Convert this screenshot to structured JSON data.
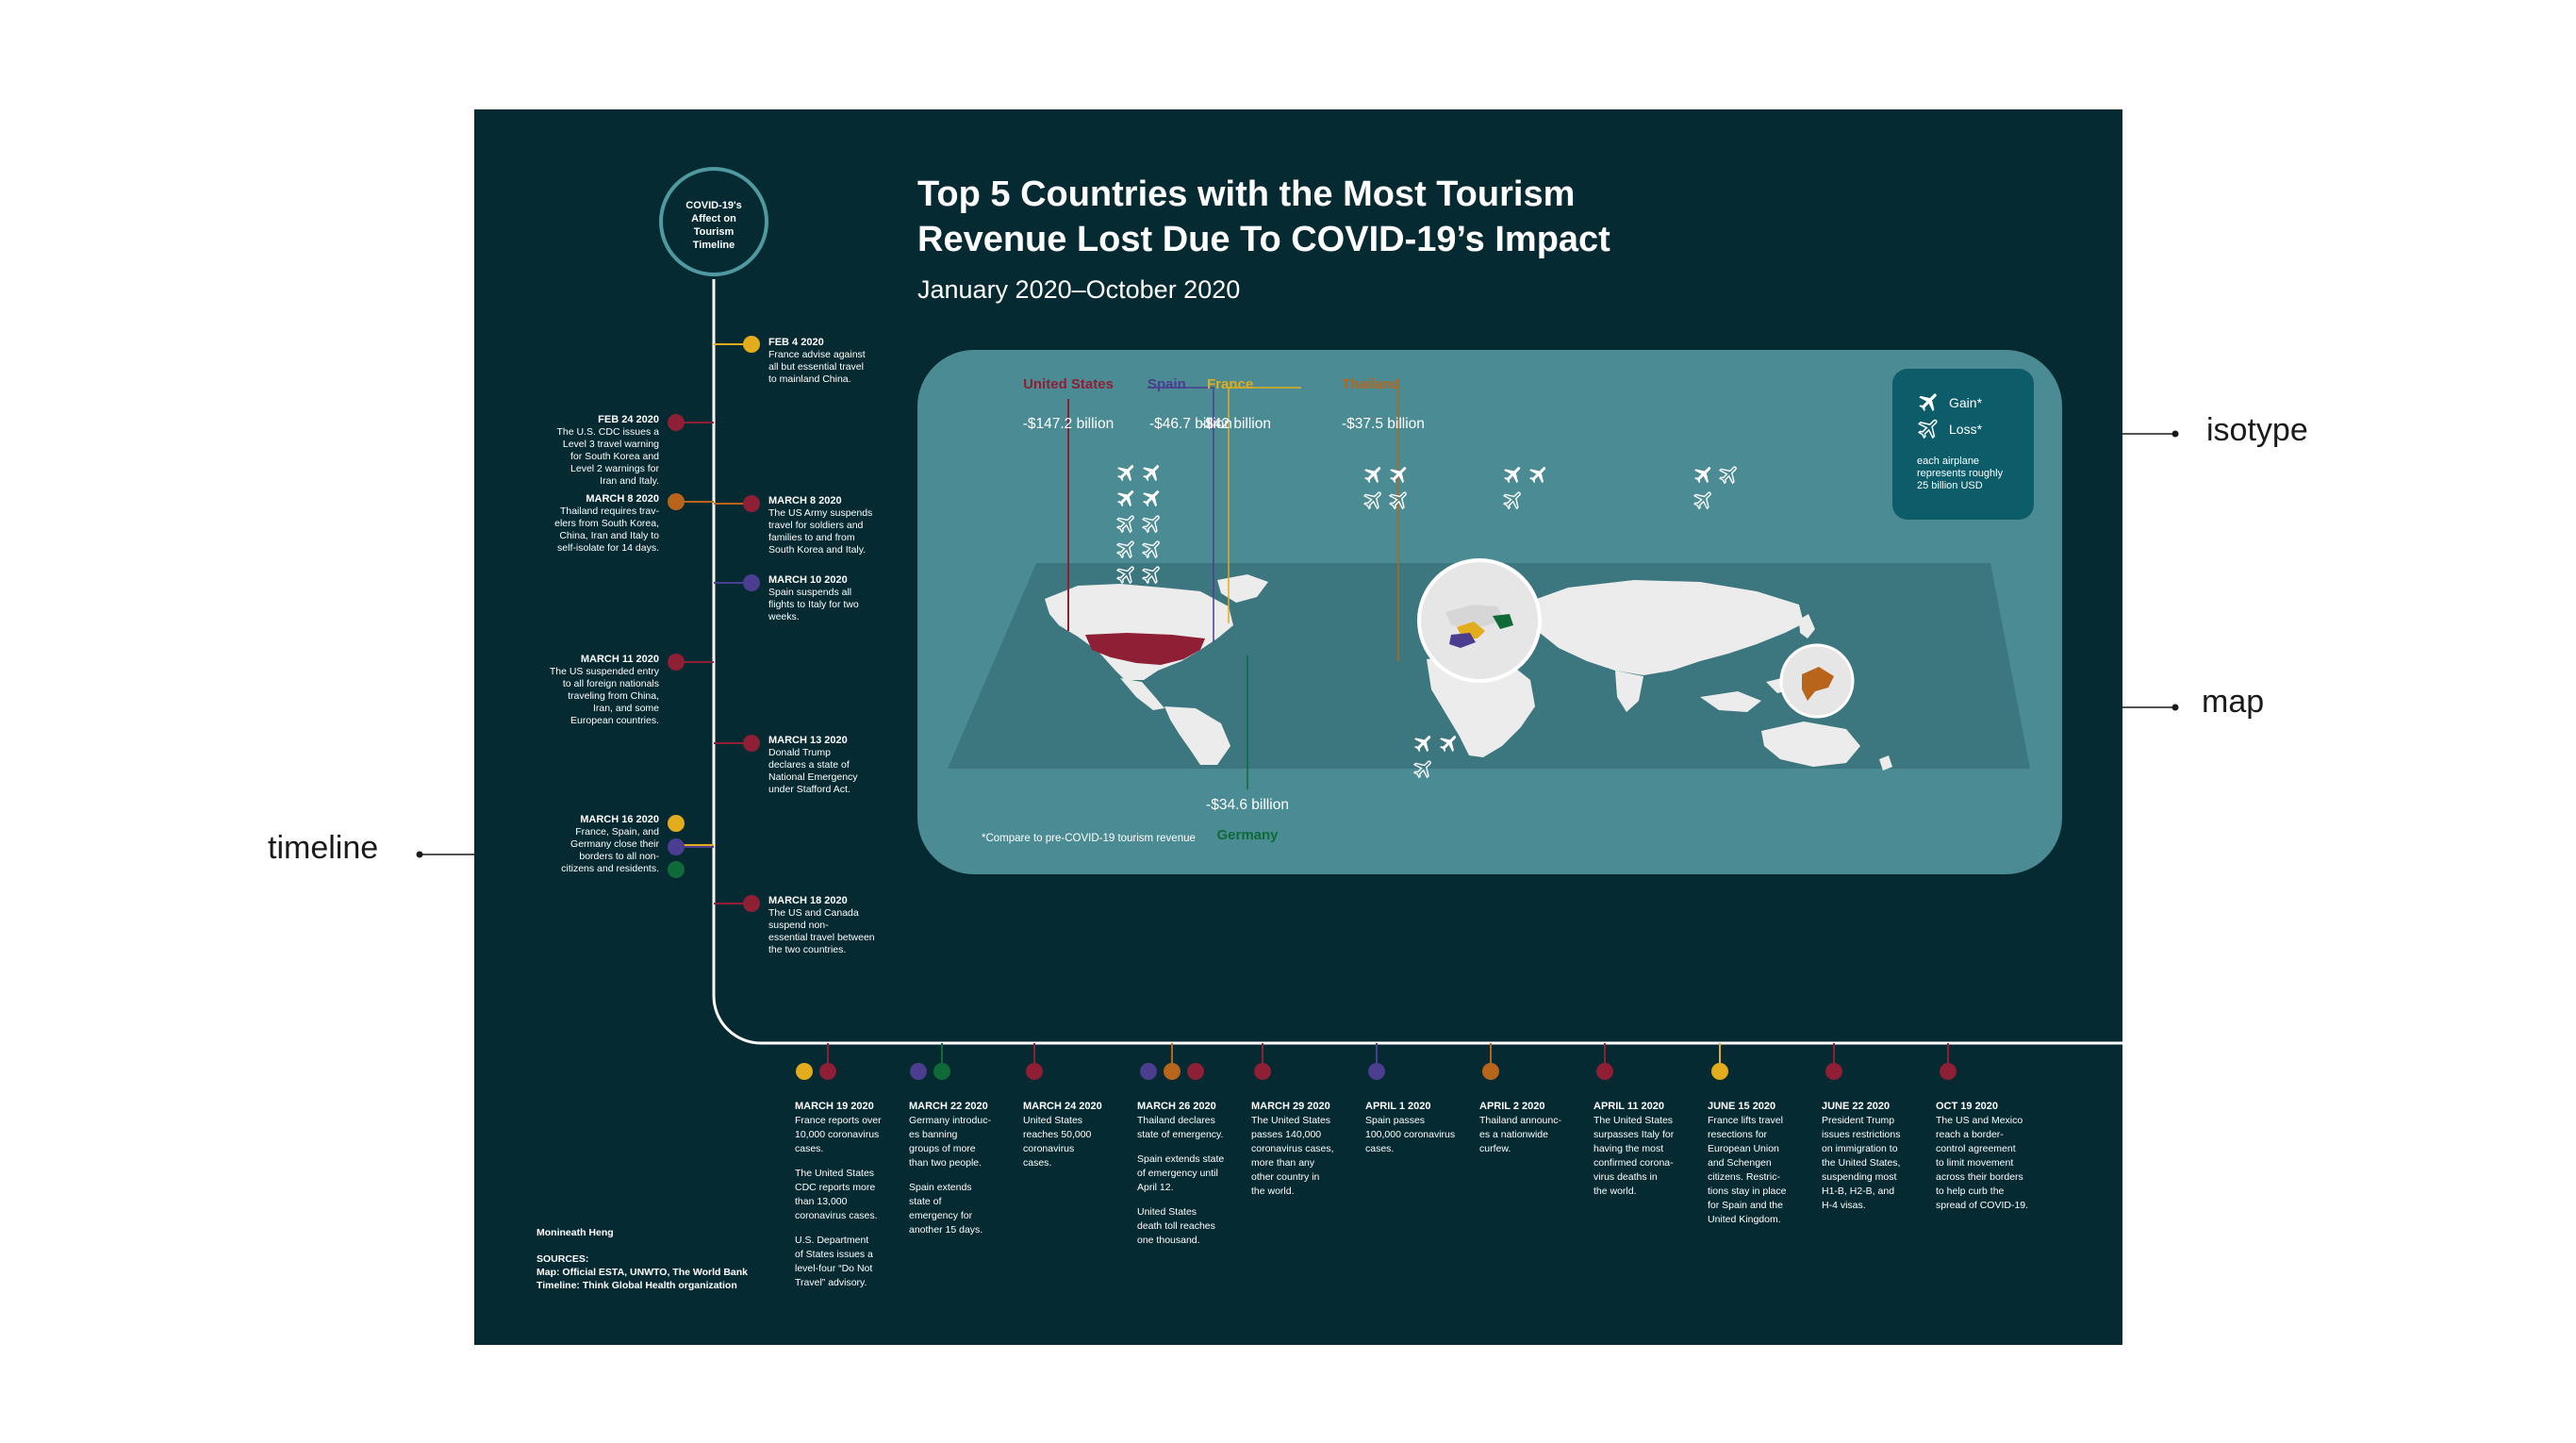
{
  "callouts": {
    "isotype": "isotype",
    "map": "map",
    "timeline": "timeline"
  },
  "header": {
    "title_line1": "Top 5 Countries with the Most Tourism",
    "title_line2": "Revenue Lost Due To COVID-19’s Impact",
    "subtitle": "January 2020–October 2020"
  },
  "timeline_badge": {
    "line1": "COVID-19's",
    "line2": "Affect on",
    "line3": "Tourism",
    "line4": "Timeline"
  },
  "colors": {
    "background": "#052a32",
    "map_panel": "#4a8b94",
    "map_band": "#3c7780",
    "legend_box": "#0c5c6a",
    "united_states": "#8e1f35",
    "spain": "#4b3d8f",
    "france": "#e2ac1c",
    "thailand": "#b9641b",
    "germany": "#0f6a38"
  },
  "legend": {
    "gain": "Gain*",
    "loss": "Loss*",
    "note_line1": "each airplane",
    "note_line2": "represents roughly",
    "note_line3": "25 billion USD"
  },
  "countries": [
    {
      "name": "United States",
      "loss": "-$147.2 billion",
      "color": "#8e1f35",
      "icon": "airplane-icon",
      "gain_planes": 4,
      "loss_planes": 6
    },
    {
      "name": "Spain",
      "loss": "-$46.7 billion",
      "color": "#4b3d8f",
      "icon": "airplane-icon",
      "gain_planes": 2,
      "loss_planes": 2
    },
    {
      "name": "France",
      "loss": "-$42 billion",
      "color": "#e2ac1c",
      "icon": "airplane-icon",
      "gain_planes": 2,
      "loss_planes": 1
    },
    {
      "name": "Thailand",
      "loss": "-$37.5 billion",
      "color": "#b9641b",
      "icon": "airplane-icon",
      "gain_planes": 1,
      "loss_planes": 2
    },
    {
      "name": "Germany",
      "loss": "-$34.6 billion",
      "color": "#0f6a38",
      "icon": "airplane-icon",
      "gain_planes": 2,
      "loss_planes": 1
    }
  ],
  "map_footnote": "*Compare to pre-COVID-19 tourism revenue",
  "timeline_right": [
    {
      "date": "FEB 4 2020",
      "text": [
        "France advise against",
        "all but essential travel",
        "to mainland China."
      ]
    },
    {
      "date": "MARCH 8 2020",
      "text": [
        "The US Army suspends",
        "travel for soldiers and",
        "families to and from",
        "South Korea and Italy."
      ]
    },
    {
      "date": "MARCH 10 2020",
      "text": [
        "Spain suspends all",
        "flights to Italy for two",
        "weeks."
      ]
    },
    {
      "date": "MARCH 13 2020",
      "text": [
        "Donald Trump",
        "declares a state of",
        "National Emergency",
        "under Stafford Act."
      ]
    },
    {
      "date": "MARCH 18 2020",
      "text": [
        "The US and Canada",
        "suspend non-",
        "essential travel between",
        "the two countries."
      ]
    }
  ],
  "timeline_left": [
    {
      "date": "FEB 24 2020",
      "text": [
        "The U.S. CDC issues a",
        "Level 3 travel warning",
        "for South Korea and",
        "Level 2 warnings for",
        "Iran and Italy."
      ]
    },
    {
      "date": "MARCH 8 2020",
      "text": [
        "Thailand requires trav-",
        "elers from South Korea,",
        "China, Iran and Italy to",
        "self-isolate for 14 days."
      ]
    },
    {
      "date": "MARCH 11 2020",
      "text": [
        "The US suspended entry",
        "to all foreign nationals",
        "traveling from China,",
        "Iran, and some",
        "European countries."
      ]
    },
    {
      "date": "MARCH 16 2020",
      "text": [
        "France, Spain, and",
        "Germany close their",
        "borders to all non-",
        "citizens and residents."
      ]
    }
  ],
  "timeline_bottom": [
    {
      "date": "MARCH 19 2020",
      "paras": [
        [
          "France reports over",
          "10,000 coronavirus",
          "cases."
        ],
        [
          "The United States",
          "CDC reports more",
          "than 13,000",
          "coronavirus cases."
        ],
        [
          "U.S. Department",
          "of States issues a",
          "level-four “Do Not",
          "Travel” advisory."
        ]
      ]
    },
    {
      "date": "MARCH 22 2020",
      "paras": [
        [
          "Germany introduc-",
          "es banning",
          "groups of more",
          "than two people."
        ],
        [
          "Spain extends",
          "state of",
          "emergency for",
          "another 15 days."
        ]
      ]
    },
    {
      "date": "MARCH 24 2020",
      "paras": [
        [
          "United States",
          "reaches 50,000",
          "coronavirus",
          "cases."
        ]
      ]
    },
    {
      "date": "MARCH 26 2020",
      "paras": [
        [
          "Thailand declares",
          "state of emergency."
        ],
        [
          "Spain extends state",
          "of emergency until",
          "April 12."
        ],
        [
          "United States",
          "death toll reaches",
          "one thousand."
        ]
      ]
    },
    {
      "date": "MARCH 29 2020",
      "paras": [
        [
          "The United States",
          "passes 140,000",
          "coronavirus cases,",
          "more than any",
          "other country in",
          "the world."
        ]
      ]
    },
    {
      "date": "APRIL 1 2020",
      "paras": [
        [
          "Spain passes",
          "100,000 coronavirus",
          "cases."
        ]
      ]
    },
    {
      "date": "APRIL 2 2020",
      "paras": [
        [
          "Thailand announc-",
          "es a nationwide",
          "curfew."
        ]
      ]
    },
    {
      "date": "APRIL 11 2020",
      "paras": [
        [
          "The United States",
          "surpasses Italy for",
          "having the most",
          "confirmed corona-",
          "virus deaths in",
          "the world."
        ]
      ]
    },
    {
      "date": "JUNE 15 2020",
      "paras": [
        [
          "France lifts travel",
          "resections for",
          "European Union",
          "and Schengen",
          "citizens. Restric-",
          "tions stay in place",
          "for Spain and the",
          "United Kingdom."
        ]
      ]
    },
    {
      "date": "JUNE 22 2020",
      "paras": [
        [
          "President Trump",
          "issues restrictions",
          "on immigration to",
          "the United States,",
          "suspending most",
          "H1-B, H2-B, and",
          "H-4 visas."
        ]
      ]
    },
    {
      "date": "OCT 19 2020",
      "paras": [
        [
          "The US and Mexico",
          "reach a border-",
          "control agreement",
          "to limit movement",
          "across their borders",
          "to help curb the",
          "spread of COVID-19."
        ]
      ]
    }
  ],
  "credits": {
    "author": "Monineath Heng",
    "sources_label": "SOURCES:",
    "map_source": "Map: Official ESTA, UNWTO, The World Bank",
    "timeline_source": "Timeline: Think Global Health organization"
  }
}
